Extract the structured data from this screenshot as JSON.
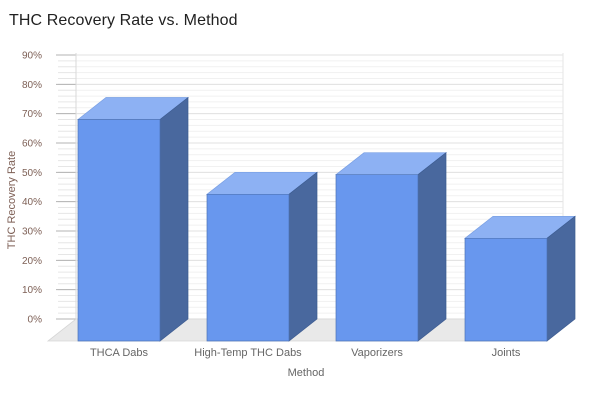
{
  "title": "THC Recovery Rate vs. Method",
  "chart_data": {
    "type": "bar",
    "style": "3d-column",
    "title": "THC Recovery Rate vs. Method",
    "categories": [
      "THCA Dabs",
      "High-Temp THC Dabs",
      "Vaporizers",
      "Joints"
    ],
    "values": [
      75.5,
      50,
      56.7,
      35
    ],
    "xlabel": "Method",
    "ylabel": "THC Recovery Rate",
    "ylim": [
      0,
      90
    ],
    "ytick_step": 10,
    "ytick_labels": [
      "0%",
      "10%",
      "20%",
      "30%",
      "40%",
      "50%",
      "60%",
      "70%",
      "80%",
      "90%"
    ],
    "grid": true,
    "legend": "none",
    "colors": {
      "bar_front": "#6897ee",
      "bar_top": "#8db1f3",
      "bar_side": "#49689e",
      "bar_edge": "#4f74b5",
      "floor": "#e9e9e9",
      "floor_edge": "#d6d6d6",
      "wall_stripe": "#f1f1f1",
      "major_grid": "#e2e2e2",
      "major_tick": "#b3b3b3",
      "minor_tick": "#e6e6e6",
      "ytick_text": "#7d5f55",
      "xtick_text": "#666666",
      "title_text": "#212121"
    }
  }
}
